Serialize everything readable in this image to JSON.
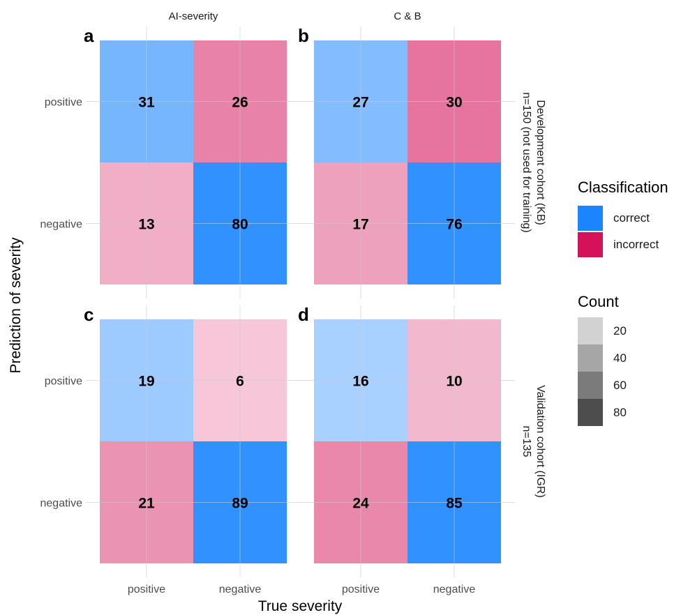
{
  "chart_data": {
    "type": "heatmap",
    "xlabel": "True severity",
    "ylabel": "Prediction of severity",
    "x_categories": [
      "positive",
      "negative"
    ],
    "y_categories": [
      "positive",
      "negative"
    ],
    "column_facets": [
      "AI-severity",
      "C & B"
    ],
    "row_facets": [
      [
        "Development cohort (KB)",
        "n=150 (not used for training)"
      ],
      [
        "Validation cohort (IGR)",
        "n=135"
      ]
    ],
    "panels": [
      {
        "letter": "a",
        "method": "AI-severity",
        "cohort": "Development cohort (KB)",
        "cells": [
          {
            "true": "positive",
            "pred": "positive",
            "count": 31,
            "classification": "correct"
          },
          {
            "true": "negative",
            "pred": "positive",
            "count": 26,
            "classification": "incorrect"
          },
          {
            "true": "positive",
            "pred": "negative",
            "count": 13,
            "classification": "incorrect"
          },
          {
            "true": "negative",
            "pred": "negative",
            "count": 80,
            "classification": "correct"
          }
        ]
      },
      {
        "letter": "b",
        "method": "C & B",
        "cohort": "Development cohort (KB)",
        "cells": [
          {
            "true": "positive",
            "pred": "positive",
            "count": 27,
            "classification": "correct"
          },
          {
            "true": "negative",
            "pred": "positive",
            "count": 30,
            "classification": "incorrect"
          },
          {
            "true": "positive",
            "pred": "negative",
            "count": 17,
            "classification": "incorrect"
          },
          {
            "true": "negative",
            "pred": "negative",
            "count": 76,
            "classification": "correct"
          }
        ]
      },
      {
        "letter": "c",
        "method": "AI-severity",
        "cohort": "Validation cohort (IGR)",
        "cells": [
          {
            "true": "positive",
            "pred": "positive",
            "count": 19,
            "classification": "correct"
          },
          {
            "true": "negative",
            "pred": "positive",
            "count": 6,
            "classification": "incorrect"
          },
          {
            "true": "positive",
            "pred": "negative",
            "count": 21,
            "classification": "incorrect"
          },
          {
            "true": "negative",
            "pred": "negative",
            "count": 89,
            "classification": "correct"
          }
        ]
      },
      {
        "letter": "d",
        "method": "C & B",
        "cohort": "Validation cohort (IGR)",
        "cells": [
          {
            "true": "positive",
            "pred": "positive",
            "count": 16,
            "classification": "correct"
          },
          {
            "true": "negative",
            "pred": "positive",
            "count": 10,
            "classification": "incorrect"
          },
          {
            "true": "positive",
            "pred": "negative",
            "count": 24,
            "classification": "incorrect"
          },
          {
            "true": "negative",
            "pred": "negative",
            "count": 85,
            "classification": "correct"
          }
        ]
      }
    ],
    "legend": {
      "classification": {
        "title": "Classification",
        "items": [
          {
            "label": "correct",
            "color": "#1A85FF"
          },
          {
            "label": "incorrect",
            "color": "#D41159"
          }
        ]
      },
      "count": {
        "title": "Count",
        "items": [
          {
            "label": "20",
            "color": "#D2D2D2"
          },
          {
            "label": "40",
            "color": "#A6A6A6"
          },
          {
            "label": "60",
            "color": "#7B7B7B"
          },
          {
            "label": "80",
            "color": "#4D4D4D"
          }
        ]
      }
    },
    "grid": true,
    "legend_position": "right"
  }
}
